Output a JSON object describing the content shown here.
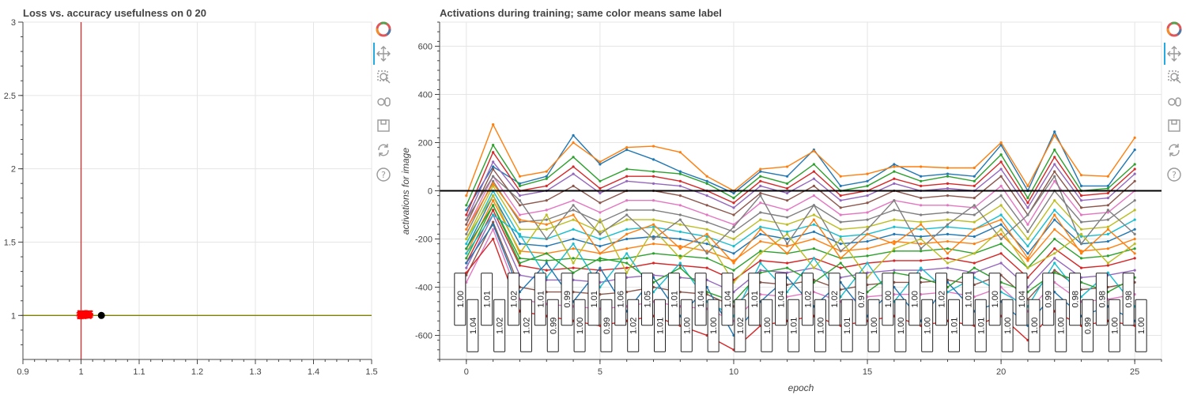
{
  "chart_data": [
    {
      "type": "scatter",
      "title": "Loss vs. accuracy usefulness on 0 20",
      "xlim": [
        0.9,
        1.5
      ],
      "ylim": [
        0.7,
        3.0
      ],
      "x_ticks": [
        "0.9",
        "1",
        "1.1",
        "1.2",
        "1.3",
        "1.4",
        "1.5"
      ],
      "y_ticks": [
        "1",
        "1.5",
        "2",
        "2.5",
        "3"
      ],
      "x_tick_values": [
        0.9,
        1.0,
        1.1,
        1.2,
        1.3,
        1.4,
        1.5
      ],
      "y_tick_values": [
        1.0,
        1.5,
        2.0,
        2.5,
        3.0
      ],
      "vline_x": 1.0,
      "hline_y": 1.0,
      "vline_color": "#d62728",
      "hline_color": "#808000",
      "trace_color": "#ff0000",
      "marker": {
        "x": 1.035,
        "y": 1.0,
        "color": "#000000"
      },
      "grid": true
    },
    {
      "type": "line",
      "title": "Activations during training; same color means same label",
      "xlabel": "epoch",
      "ylabel": "activations for image",
      "xlim": [
        -1,
        26
      ],
      "ylim": [
        -700,
        700
      ],
      "x_ticks": [
        "0",
        "5",
        "10",
        "15",
        "20",
        "25"
      ],
      "y_ticks": [
        "600",
        "400",
        "200",
        "0",
        "-200",
        "-400",
        "-600"
      ],
      "x_tick_values": [
        0,
        5,
        10,
        15,
        20,
        25
      ],
      "y_tick_values": [
        600,
        400,
        200,
        0,
        -200,
        -400,
        -600
      ],
      "zero_line_color": "#000000",
      "grid": true,
      "epochs": [
        0,
        1,
        2,
        3,
        4,
        5,
        6,
        7,
        8,
        9,
        10,
        11,
        12,
        13,
        14,
        15,
        16,
        17,
        18,
        19,
        20,
        21,
        22,
        23,
        24,
        25
      ],
      "box_labels": [
        {
          "epoch": 0,
          "top": "1.00",
          "bottom": "1.04"
        },
        {
          "epoch": 1,
          "top": "1.01",
          "bottom": "1.02"
        },
        {
          "epoch": 2,
          "top": "1.02",
          "bottom": "1.02"
        },
        {
          "epoch": 3,
          "top": "1.01",
          "bottom": "0.99"
        },
        {
          "epoch": 4,
          "top": "0.99",
          "bottom": "1.00"
        },
        {
          "epoch": 5,
          "top": "1.01",
          "bottom": "0.99"
        },
        {
          "epoch": 6,
          "top": "1.06",
          "bottom": "1.02"
        },
        {
          "epoch": 7,
          "top": "1.05",
          "bottom": "1.01"
        },
        {
          "epoch": 8,
          "top": "1.01",
          "bottom": "1.00"
        },
        {
          "epoch": 9,
          "top": "1.04",
          "bottom": "1.00"
        },
        {
          "epoch": 10,
          "top": "1.04",
          "bottom": "1.02"
        },
        {
          "epoch": 11,
          "top": "1.01",
          "bottom": "1.00"
        },
        {
          "epoch": 12,
          "top": "1.04",
          "bottom": "1.01"
        },
        {
          "epoch": 13,
          "top": "1.02",
          "bottom": "1.00"
        },
        {
          "epoch": 14,
          "top": "1.02",
          "bottom": "1.01"
        },
        {
          "epoch": 15,
          "top": "0.97",
          "bottom": "1.00"
        },
        {
          "epoch": 16,
          "top": "1.00",
          "bottom": "1.00"
        },
        {
          "epoch": 17,
          "top": "1.00",
          "bottom": "1.00"
        },
        {
          "epoch": 18,
          "top": "1.02",
          "bottom": "1.01"
        },
        {
          "epoch": 19,
          "top": "1.01",
          "bottom": "1.01"
        },
        {
          "epoch": 20,
          "top": "1.00",
          "bottom": "1.00"
        },
        {
          "epoch": 21,
          "top": "1.04",
          "bottom": "1.00"
        },
        {
          "epoch": 22,
          "top": "0.99",
          "bottom": "1.00"
        },
        {
          "epoch": 23,
          "top": "0.98",
          "bottom": "0.99"
        },
        {
          "epoch": 24,
          "top": "0.98",
          "bottom": "1.00"
        },
        {
          "epoch": 25,
          "top": "0.98",
          "bottom": "1.00"
        }
      ],
      "series_colors": [
        "#1f77b4",
        "#ff7f0e",
        "#2ca02c",
        "#d62728",
        "#9467bd",
        "#8c564b",
        "#e377c2",
        "#7f7f7f",
        "#bcbd22",
        "#17becf"
      ],
      "series": [
        {
          "values": [
            -80,
            100,
            30,
            60,
            230,
            110,
            170,
            130,
            80,
            40,
            -10,
            80,
            60,
            170,
            20,
            40,
            110,
            60,
            70,
            60,
            190,
            0,
            245,
            20,
            20,
            170
          ]
        },
        {
          "values": [
            -20,
            275,
            60,
            80,
            200,
            120,
            180,
            185,
            160,
            60,
            0,
            90,
            100,
            165,
            60,
            70,
            100,
            100,
            95,
            95,
            200,
            20,
            230,
            65,
            60,
            220
          ]
        },
        {
          "values": [
            -60,
            190,
            20,
            50,
            140,
            40,
            90,
            80,
            70,
            30,
            -30,
            60,
            30,
            110,
            0,
            20,
            80,
            40,
            60,
            40,
            150,
            -30,
            170,
            0,
            10,
            110
          ]
        },
        {
          "values": [
            -100,
            160,
            0,
            20,
            100,
            10,
            60,
            60,
            40,
            0,
            -50,
            40,
            10,
            80,
            -20,
            0,
            50,
            20,
            30,
            20,
            120,
            -50,
            140,
            -20,
            -10,
            90
          ]
        },
        {
          "values": [
            -120,
            120,
            -20,
            0,
            70,
            -10,
            40,
            30,
            20,
            -20,
            -70,
            20,
            -10,
            50,
            -40,
            -20,
            30,
            0,
            10,
            0,
            90,
            -70,
            110,
            -40,
            -30,
            70
          ]
        },
        {
          "values": [
            -140,
            90,
            -60,
            -40,
            20,
            -50,
            0,
            0,
            -20,
            -60,
            -100,
            -10,
            -40,
            20,
            -70,
            -50,
            0,
            -30,
            -20,
            -30,
            60,
            -100,
            80,
            -70,
            -60,
            40
          ]
        },
        {
          "values": [
            -160,
            60,
            -100,
            -80,
            -40,
            -90,
            -40,
            -40,
            -60,
            -100,
            -140,
            -50,
            -80,
            -20,
            -100,
            -90,
            -40,
            -60,
            -60,
            -70,
            20,
            -140,
            40,
            -100,
            -90,
            0
          ]
        },
        {
          "values": [
            -180,
            40,
            -130,
            -120,
            -80,
            -130,
            -80,
            -80,
            -100,
            -130,
            -170,
            -90,
            -110,
            -60,
            -130,
            -120,
            -80,
            -100,
            -90,
            -100,
            -20,
            -170,
            0,
            -130,
            -120,
            -40
          ]
        },
        {
          "values": [
            -200,
            20,
            -160,
            -160,
            -120,
            -170,
            -120,
            -120,
            -140,
            -160,
            -200,
            -120,
            -140,
            -100,
            -160,
            -150,
            -120,
            -130,
            -120,
            -130,
            -60,
            -200,
            -40,
            -160,
            -150,
            -80
          ]
        },
        {
          "values": [
            -220,
            0,
            -190,
            -200,
            -160,
            -200,
            -160,
            -150,
            -170,
            -190,
            -230,
            -150,
            -170,
            -140,
            -190,
            -180,
            -150,
            -160,
            -150,
            -160,
            -100,
            -230,
            -80,
            -190,
            -180,
            -120
          ]
        },
        {
          "values": [
            -240,
            -20,
            -220,
            -230,
            -200,
            -230,
            -200,
            -190,
            -200,
            -220,
            -260,
            -180,
            -200,
            -170,
            -220,
            -210,
            -180,
            -190,
            -180,
            -190,
            -140,
            -260,
            -120,
            -220,
            -210,
            -160
          ]
        },
        {
          "values": [
            -260,
            -40,
            -250,
            -260,
            -240,
            -260,
            -240,
            -220,
            -230,
            -250,
            -290,
            -210,
            -230,
            -200,
            -250,
            -240,
            -210,
            -220,
            -210,
            -220,
            -180,
            -290,
            -160,
            -250,
            -240,
            -200
          ]
        },
        {
          "values": [
            -280,
            -60,
            -280,
            -290,
            -280,
            -290,
            -280,
            -260,
            -270,
            -280,
            -330,
            -250,
            -260,
            -240,
            -280,
            -270,
            -250,
            -250,
            -240,
            -260,
            -220,
            -320,
            -200,
            -280,
            -270,
            -240
          ]
        },
        {
          "values": [
            -300,
            -80,
            -310,
            -330,
            -320,
            -330,
            -320,
            -300,
            -310,
            -320,
            -370,
            -290,
            -300,
            -280,
            -320,
            -300,
            -290,
            -290,
            -280,
            -300,
            -260,
            -360,
            -240,
            -320,
            -310,
            -280
          ]
        },
        {
          "values": [
            -320,
            -100,
            -350,
            -370,
            -370,
            -380,
            -360,
            -350,
            -360,
            -370,
            -420,
            -330,
            -340,
            -320,
            -360,
            -340,
            -330,
            -330,
            -320,
            -340,
            -300,
            -400,
            -280,
            -360,
            -350,
            -330
          ]
        },
        {
          "values": [
            -350,
            -130,
            -400,
            -420,
            -420,
            -430,
            -420,
            -400,
            -420,
            -430,
            -480,
            -380,
            -390,
            -370,
            -410,
            -390,
            -380,
            -380,
            -370,
            -390,
            -350,
            -450,
            -330,
            -410,
            -400,
            -380
          ]
        },
        {
          "values": [
            -380,
            -160,
            -450,
            -470,
            -480,
            -490,
            -480,
            -460,
            -480,
            -490,
            -540,
            -430,
            -440,
            -420,
            -460,
            -440,
            -430,
            -430,
            -420,
            -440,
            -400,
            -500,
            -380,
            -460,
            -450,
            -430
          ]
        },
        {
          "values": [
            -120,
            60,
            -40,
            -200,
            -60,
            -180,
            -100,
            -200,
            -120,
            -260,
            -150,
            -20,
            -220,
            -60,
            -250,
            -160,
            -40,
            -240,
            -140,
            -60,
            -200,
            -100,
            60,
            -220,
            -80,
            -180
          ]
        },
        {
          "values": [
            -200,
            -20,
            -260,
            -100,
            -300,
            -120,
            -340,
            -160,
            -280,
            -200,
            -380,
            -260,
            -180,
            -320,
            -200,
            -360,
            -240,
            -200,
            -300,
            -260,
            -160,
            -320,
            -260,
            -180,
            -300,
            -220
          ]
        },
        {
          "values": [
            -260,
            -100,
            -180,
            -360,
            -220,
            -400,
            -260,
            -420,
            -300,
            -460,
            -520,
            -300,
            -420,
            -280,
            -440,
            -300,
            -460,
            -320,
            -420,
            -360,
            -420,
            -480,
            -300,
            -440,
            -340,
            -480
          ]
        },
        {
          "values": [
            -300,
            -140,
            -420,
            -300,
            -460,
            -320,
            -500,
            -360,
            -520,
            -400,
            -600,
            -460,
            -360,
            -480,
            -380,
            -520,
            -400,
            -540,
            -380,
            -500,
            -460,
            -560,
            -420,
            -520,
            -480,
            -540
          ]
        },
        {
          "values": [
            -160,
            30,
            -120,
            -140,
            -100,
            -260,
            -180,
            -140,
            -240,
            -180,
            -300,
            -160,
            -260,
            -120,
            -280,
            -180,
            -220,
            -140,
            -260,
            -160,
            -120,
            -280,
            -100,
            -260,
            -160,
            -260
          ]
        },
        {
          "values": [
            -240,
            -60,
            -300,
            -260,
            -340,
            -280,
            -300,
            -380,
            -320,
            -420,
            -460,
            -340,
            -320,
            -380,
            -300,
            -420,
            -340,
            -360,
            -400,
            -320,
            -380,
            -420,
            -340,
            -380,
            -420,
            -360
          ]
        },
        {
          "values": [
            -340,
            -200,
            -500,
            -520,
            -540,
            -560,
            -540,
            -520,
            -560,
            -600,
            -660,
            -560,
            -540,
            -520,
            -560,
            -540,
            -520,
            -560,
            -540,
            -560,
            -520,
            -620,
            -500,
            -560,
            -540,
            -560
          ]
        }
      ]
    }
  ]
}
